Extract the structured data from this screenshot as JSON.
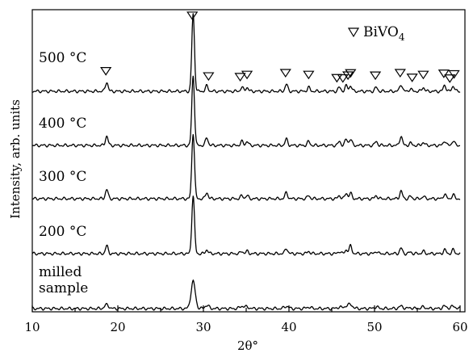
{
  "chart_data": {
    "type": "line",
    "title": "",
    "xlabel": "2θ°",
    "ylabel": "Intensity, arb. units",
    "xlim": [
      10,
      60
    ],
    "x_ticks": [
      "10",
      "20",
      "30",
      "40",
      "50",
      "60"
    ],
    "grid": false,
    "legend": {
      "symbol": "∇",
      "label": "BiVO",
      "subscript": "4",
      "placement": "top-right"
    },
    "peaks_2theta": [
      18.7,
      28.8,
      30.4,
      34.5,
      35.1,
      39.7,
      42.3,
      45.9,
      46.7,
      47.2,
      50.2,
      53.1,
      54.2,
      55.7,
      58.2,
      59.2
    ],
    "bivo4_markers_500C": [
      18.6,
      28.7,
      30.6,
      34.3,
      35.1,
      39.6,
      42.3,
      45.6,
      46.3,
      46.9,
      47.2,
      50.1,
      53.0,
      54.4,
      55.7,
      58.1,
      58.8,
      59.3
    ],
    "series": [
      {
        "name": "500 °C",
        "label_lines": [
          "500 °C"
        ],
        "baseline": 0,
        "heights": [
          0.12,
          1.0,
          0.07,
          0.05,
          0.05,
          0.09,
          0.05,
          0.05,
          0.07,
          0.07,
          0.05,
          0.09,
          0.03,
          0.05,
          0.08,
          0.07
        ]
      },
      {
        "name": "400 °C",
        "label_lines": [
          "400 °C"
        ],
        "baseline": 0,
        "heights": [
          0.12,
          0.9,
          0.1,
          0.05,
          0.05,
          0.08,
          0.05,
          0.05,
          0.08,
          0.08,
          0.05,
          0.12,
          0.03,
          0.04,
          0.06,
          0.06
        ]
      },
      {
        "name": "300 °C",
        "label_lines": [
          "300 °C"
        ],
        "baseline": 0,
        "heights": [
          0.12,
          0.85,
          0.08,
          0.04,
          0.04,
          0.08,
          0.04,
          0.04,
          0.07,
          0.07,
          0.04,
          0.1,
          0.03,
          0.03,
          0.06,
          0.05
        ]
      },
      {
        "name": "200 °C",
        "label_lines": [
          "200 °C"
        ],
        "baseline": 0,
        "heights": [
          0.1,
          0.75,
          0.05,
          0.03,
          0.03,
          0.07,
          0.03,
          0.03,
          0.05,
          0.1,
          0.03,
          0.07,
          0.02,
          0.03,
          0.05,
          0.05
        ]
      },
      {
        "name": "milled sample",
        "label_lines": [
          "milled",
          "sample"
        ],
        "baseline": 0,
        "heights": [
          0.05,
          0.35,
          0.04,
          0.03,
          0.02,
          0.03,
          0.02,
          0.02,
          0.03,
          0.05,
          0.02,
          0.03,
          0.01,
          0.02,
          0.03,
          0.03
        ]
      }
    ]
  }
}
